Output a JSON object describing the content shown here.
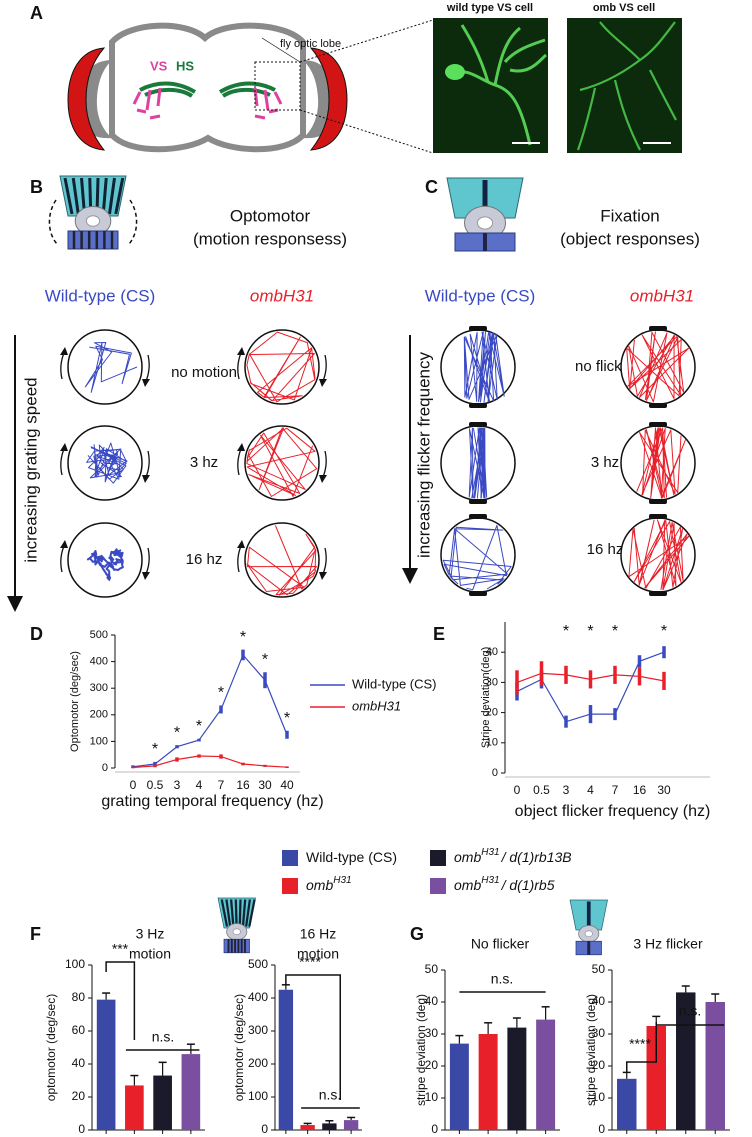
{
  "panel_a": {
    "letter": "A",
    "vs": "VS",
    "hs": "HS",
    "lobe_label": "fly optic lobe",
    "image_titles": [
      "wild type VS cell",
      "omb VS cell"
    ]
  },
  "panel_b": {
    "letter": "B",
    "title": "Optomotor",
    "subtitle": "(motion responsess)",
    "wild_type": "Wild-type (CS)",
    "mutant": "ombH31",
    "axis_label": "increasing grating speed",
    "conditions": [
      "no motion",
      "3 hz",
      "16 hz"
    ]
  },
  "panel_c": {
    "letter": "C",
    "title": "Fixation",
    "subtitle": "(object responses)",
    "wild_type": "Wild-type (CS)",
    "mutant": "ombH31",
    "axis_label": "increasing flicker frequency",
    "conditions": [
      "no flicker",
      "3 hz",
      "16 hz"
    ]
  },
  "legend": [
    {
      "text": "Wild-type (CS)",
      "color": "#3a49a5"
    },
    {
      "text": "omb",
      "sup": "H31",
      "color": "#e8202a"
    },
    {
      "text": "omb",
      "sup": "H31",
      "suffix": "/ d(1)rb13B",
      "color": "#1a1a2a"
    },
    {
      "text": "omb",
      "sup": "H31",
      "suffix": "/ d(1)rb5",
      "color": "#7b4fa0"
    }
  ],
  "chart_data": [
    {
      "type": "line",
      "panel": "D",
      "ylabel": "Optomotor (deg/sec)",
      "xlabel": "grating temporal frequency (hz)",
      "categories": [
        "0",
        "0.5",
        "3",
        "4",
        "7",
        "16",
        "30",
        "40"
      ],
      "ylim": [
        0,
        500
      ],
      "yticks": [
        0,
        100,
        200,
        300,
        400,
        500
      ],
      "legend": true,
      "series": [
        {
          "name": "Wild-type (CS)",
          "color": "#3a4bc0",
          "values": [
            5,
            15,
            80,
            105,
            220,
            425,
            330,
            125
          ],
          "errors": [
            5,
            8,
            6,
            5,
            15,
            20,
            30,
            15
          ]
        },
        {
          "name": "ombH31",
          "color": "#e8202a",
          "values": [
            2,
            8,
            32,
            45,
            43,
            15,
            8,
            3
          ],
          "errors": [
            3,
            5,
            8,
            6,
            8,
            5,
            4,
            3
          ]
        }
      ],
      "significance": [
        null,
        "*",
        "*",
        "*",
        "*",
        "*",
        "*",
        "*"
      ]
    },
    {
      "type": "line",
      "panel": "E",
      "ylabel": "Stripe deviation(deg)",
      "xlabel": "object flicker frequency (hz)",
      "categories": [
        "0",
        "0.5",
        "3",
        "4",
        "7",
        "16",
        "30"
      ],
      "ylim": [
        0,
        50
      ],
      "yticks": [
        0,
        10,
        20,
        30,
        40
      ],
      "legend": false,
      "series": [
        {
          "name": "Wild-type (CS)",
          "color": "#3a4bc0",
          "values": [
            27,
            31,
            17,
            19.5,
            19.5,
            37,
            40
          ],
          "errors": [
            3,
            3,
            2,
            3,
            2,
            2,
            2
          ]
        },
        {
          "name": "ombH31",
          "color": "#e8202a",
          "values": [
            30,
            33,
            32.5,
            31,
            32.5,
            32,
            30.5
          ],
          "errors": [
            4,
            4,
            3,
            3,
            3,
            3,
            3
          ]
        }
      ],
      "significance": [
        null,
        null,
        "*",
        "*",
        "*",
        null,
        "*"
      ]
    },
    {
      "type": "bar",
      "panel": "F",
      "title": [
        "3 Hz",
        "motion"
      ],
      "ylabel": "optomotor (deg/sec)",
      "categories": [
        null,
        null,
        null,
        null
      ],
      "values": [
        79,
        27,
        33,
        46
      ],
      "errors": [
        4,
        6,
        8,
        6
      ],
      "colors": [
        "#3a49a5",
        "#e8202a",
        "#1a1a2a",
        "#7b4fa0"
      ],
      "ylim": [
        0,
        100
      ],
      "yticks": [
        0,
        20,
        40,
        60,
        80,
        100
      ],
      "annotations": [
        "***",
        "n.s."
      ]
    },
    {
      "type": "bar",
      "title": [
        "16 Hz",
        "motion"
      ],
      "ylabel": "optomotor (deg/sec)",
      "categories": [
        null,
        null,
        null,
        null
      ],
      "values": [
        425,
        15,
        20,
        30
      ],
      "errors": [
        15,
        5,
        8,
        8
      ],
      "colors": [
        "#3a49a5",
        "#e8202a",
        "#1a1a2a",
        "#7b4fa0"
      ],
      "ylim": [
        0,
        500
      ],
      "yticks": [
        0,
        100,
        200,
        300,
        400,
        500
      ],
      "annotations": [
        "****",
        "n.s."
      ]
    },
    {
      "type": "bar",
      "panel": "G",
      "title": [
        "No flicker"
      ],
      "ylabel": "stripe deviation (deg)",
      "categories": [
        null,
        null,
        null,
        null
      ],
      "values": [
        27,
        30,
        32,
        34.5
      ],
      "errors": [
        2.5,
        3.5,
        3,
        4
      ],
      "colors": [
        "#3a49a5",
        "#e8202a",
        "#1a1a2a",
        "#7b4fa0"
      ],
      "ylim": [
        0,
        50
      ],
      "yticks": [
        0,
        10,
        20,
        30,
        40,
        50
      ],
      "annotations": [
        "n.s."
      ]
    },
    {
      "type": "bar",
      "title": [
        "3 Hz flicker"
      ],
      "ylabel": "stripe deviation (deg)",
      "categories": [
        null,
        null,
        null,
        null
      ],
      "values": [
        16,
        32.5,
        43,
        40
      ],
      "errors": [
        2,
        3,
        2,
        2.5
      ],
      "colors": [
        "#3a49a5",
        "#e8202a",
        "#1a1a2a",
        "#7b4fa0"
      ],
      "ylim": [
        0,
        50
      ],
      "yticks": [
        0,
        10,
        20,
        30,
        40,
        50
      ],
      "annotations": [
        "****",
        "n.s."
      ]
    }
  ]
}
